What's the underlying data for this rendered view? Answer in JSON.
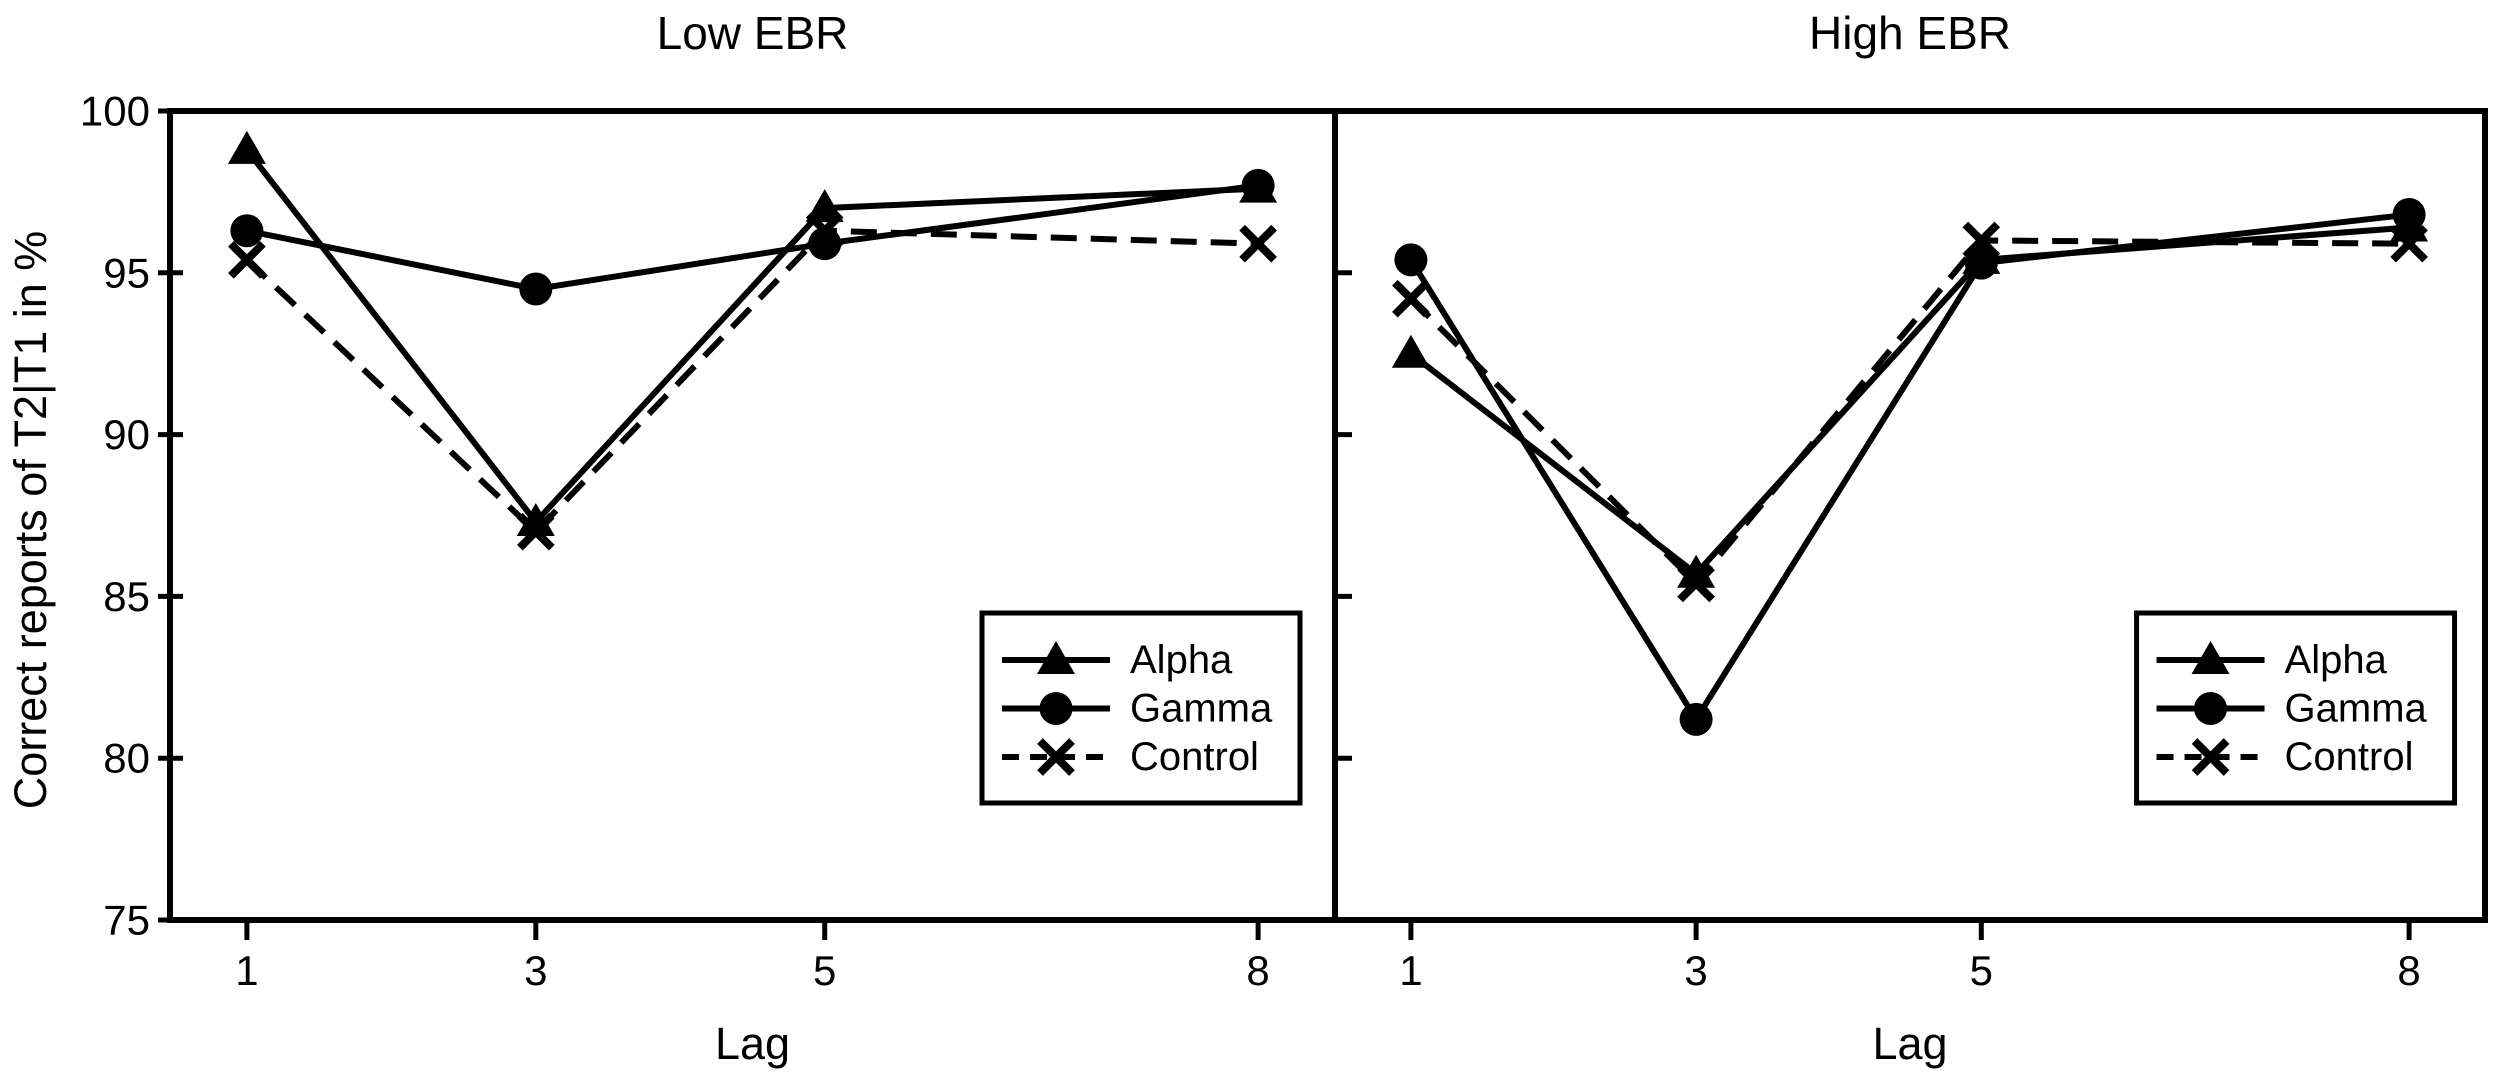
{
  "figure": {
    "background": "#ffffff",
    "foreground": "#000000",
    "y_axis_label": "Correct reports of T2|T1 in %",
    "x_axis_label": "Lag"
  },
  "chart_data": [
    {
      "type": "line",
      "title": "Low EBR",
      "xlabel": "Lag",
      "ylabel": "Correct reports of T2|T1 in %",
      "x": [
        1,
        3,
        5,
        8
      ],
      "xtick_labels": [
        "1",
        "3",
        "5",
        "8"
      ],
      "ylim": [
        75,
        100
      ],
      "yticks": [
        75,
        80,
        85,
        90,
        95,
        100
      ],
      "grid": false,
      "legend_position": "lower right",
      "legend_entries": [
        "Alpha",
        "Gamma",
        "Control"
      ],
      "series": [
        {
          "name": "Alpha",
          "marker": "triangle",
          "linestyle": "solid",
          "color": "#000000",
          "values": [
            98.8,
            87.3,
            97.0,
            97.6
          ]
        },
        {
          "name": "Gamma",
          "marker": "circle",
          "linestyle": "solid",
          "color": "#000000",
          "values": [
            96.3,
            94.5,
            95.9,
            97.7
          ]
        },
        {
          "name": "Control",
          "marker": "x",
          "linestyle": "dashed",
          "color": "#000000",
          "values": [
            95.4,
            87.0,
            96.3,
            95.9
          ]
        }
      ]
    },
    {
      "type": "line",
      "title": "High EBR",
      "xlabel": "Lag",
      "ylabel": "",
      "x": [
        1,
        3,
        5,
        8
      ],
      "xtick_labels": [
        "1",
        "3",
        "5",
        "8"
      ],
      "ylim": [
        75,
        100
      ],
      "yticks": [
        75,
        80,
        85,
        90,
        95,
        100
      ],
      "grid": false,
      "legend_position": "lower right",
      "legend_entries": [
        "Alpha",
        "Gamma",
        "Control"
      ],
      "series": [
        {
          "name": "Alpha",
          "marker": "triangle",
          "linestyle": "solid",
          "color": "#000000",
          "values": [
            92.5,
            85.7,
            95.4,
            96.4
          ]
        },
        {
          "name": "Gamma",
          "marker": "circle",
          "linestyle": "solid",
          "color": "#000000",
          "values": [
            95.4,
            81.2,
            95.3,
            96.8
          ]
        },
        {
          "name": "Control",
          "marker": "x",
          "linestyle": "dashed",
          "color": "#000000",
          "values": [
            94.2,
            85.4,
            96.0,
            95.9
          ]
        }
      ]
    }
  ]
}
